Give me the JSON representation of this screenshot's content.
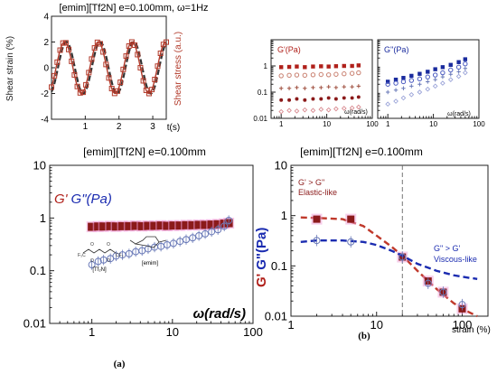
{
  "panel_labels": {
    "a": "(a)",
    "b": "(b)"
  },
  "chart_data": [
    {
      "id": "strain_stress",
      "type": "line",
      "title": "[emim][Tf2N] e=0.100mm, ω=1Hz",
      "xlabel": "t(s)",
      "ylabel_left": "Shear strain (%)",
      "ylabel_right": "Shear stress (a.u.)",
      "xlim": [
        0,
        3.4
      ],
      "ylim": [
        -4,
        4
      ],
      "x_ticks": [
        1,
        2,
        3
      ],
      "y_ticks": [
        -4,
        -2,
        0,
        2,
        4
      ],
      "frequency_hz": 1,
      "series": [
        {
          "role": "strain",
          "color": "#333333",
          "style": "dashed",
          "amplitude": 2,
          "phase": 0
        },
        {
          "role": "stress",
          "color": "#b23a2a",
          "style": "square-markers",
          "amplitude": 2,
          "phase": 0.35
        }
      ]
    },
    {
      "id": "panel_a",
      "type": "scatter",
      "title": "[emim][Tf2N] e=0.100mm",
      "ylabel": {
        "g1": "G'",
        "g2": "G\"(Pa)"
      },
      "xlabel": "ω(rad/s)",
      "xscale": "log",
      "yscale": "log",
      "xlim": [
        0.3,
        100
      ],
      "ylim": [
        0.01,
        10
      ],
      "x_ticks": [
        "1",
        "10",
        "100"
      ],
      "y_ticks": [
        "0.01",
        "0.1",
        "1",
        "10"
      ],
      "grid": false,
      "molecules": {
        "anion": "[Tf₂N]",
        "cation": "[emim]"
      },
      "series": [
        {
          "role": "G'",
          "color": "#8b1a1a",
          "marker": "filled-square",
          "x": [
            1.0,
            1.2,
            1.4,
            1.7,
            2.0,
            2.4,
            2.9,
            3.5,
            4.2,
            5.0,
            6.0,
            7.2,
            8.6,
            10.3,
            12.4,
            14.8,
            17.8,
            21.3,
            25.5,
            30.6,
            36.7,
            44.0,
            50.0
          ],
          "y": [
            0.68,
            0.69,
            0.69,
            0.7,
            0.69,
            0.7,
            0.7,
            0.71,
            0.7,
            0.71,
            0.71,
            0.72,
            0.71,
            0.72,
            0.72,
            0.73,
            0.73,
            0.74,
            0.74,
            0.75,
            0.76,
            0.78,
            0.8
          ]
        },
        {
          "role": "G\"",
          "color": "#6a7ab8",
          "marker": "open-circle",
          "x": [
            1.0,
            1.2,
            1.4,
            1.7,
            2.0,
            2.4,
            2.9,
            3.5,
            4.2,
            5.0,
            6.0,
            7.2,
            8.6,
            10.3,
            12.4,
            14.8,
            17.8,
            21.3,
            25.5,
            30.6,
            36.7,
            44.0,
            50.0
          ],
          "y": [
            0.13,
            0.15,
            0.16,
            0.17,
            0.19,
            0.2,
            0.21,
            0.23,
            0.24,
            0.26,
            0.28,
            0.29,
            0.31,
            0.33,
            0.36,
            0.39,
            0.42,
            0.46,
            0.5,
            0.55,
            0.6,
            0.7,
            0.9
          ]
        }
      ]
    },
    {
      "id": "inset_gp",
      "type": "scatter",
      "label": "G'(Pa)",
      "xlabel": "ω(rad/s)",
      "xscale": "log",
      "yscale": "log",
      "xlim": [
        0.6,
        100
      ],
      "ylim": [
        0.01,
        10
      ],
      "x_ticks": [
        "1",
        "10",
        "100"
      ],
      "y_ticks": [
        "0.01",
        "0.1",
        "1"
      ],
      "series": [
        {
          "color": "#b0201a",
          "marker": "filled-square",
          "x": [
            1,
            1.5,
            2.2,
            3.3,
            5,
            7.5,
            11,
            16,
            24,
            36,
            50
          ],
          "y": [
            0.9,
            0.92,
            0.95,
            0.9,
            0.95,
            0.97,
            0.95,
            0.98,
            1.0,
            1.0,
            1.05
          ]
        },
        {
          "color": "#c98070",
          "marker": "open-circle",
          "x": [
            1,
            1.5,
            2.2,
            3.3,
            5,
            7.5,
            11,
            16,
            24,
            36,
            50
          ],
          "y": [
            0.42,
            0.44,
            0.45,
            0.44,
            0.46,
            0.47,
            0.46,
            0.48,
            0.5,
            0.52,
            0.55
          ]
        },
        {
          "color": "#a05040",
          "marker": "cross",
          "x": [
            1,
            1.5,
            2.2,
            3.3,
            5,
            7.5,
            11,
            16,
            24,
            36,
            50
          ],
          "y": [
            0.14,
            0.14,
            0.15,
            0.14,
            0.15,
            0.15,
            0.16,
            0.15,
            0.16,
            0.16,
            0.17
          ]
        },
        {
          "color": "#8b1a1a",
          "marker": "filled-circle",
          "x": [
            1,
            1.5,
            2.2,
            3.3,
            5,
            7.5,
            11,
            16,
            24,
            36,
            50
          ],
          "y": [
            0.05,
            0.05,
            0.055,
            0.05,
            0.055,
            0.055,
            0.06,
            0.055,
            0.06,
            0.06,
            0.065
          ]
        },
        {
          "color": "#d88a90",
          "marker": "open-diamond",
          "x": [
            1,
            1.5,
            2.2,
            3.3,
            5,
            7.5,
            11,
            16,
            24,
            36,
            50
          ],
          "y": [
            0.018,
            0.02,
            0.019,
            0.021,
            0.02,
            0.022,
            0.021,
            0.023,
            0.024,
            0.025,
            0.027
          ]
        }
      ]
    },
    {
      "id": "inset_gpp",
      "type": "scatter",
      "label": "G''(Pa)",
      "xlabel": "ω(rad/s)",
      "xscale": "log",
      "yscale": "log",
      "xlim": [
        0.6,
        100
      ],
      "ylim": [
        0.01,
        10
      ],
      "x_ticks": [
        "1",
        "10",
        "100"
      ],
      "series": [
        {
          "color": "#1a2b9e",
          "marker": "filled-square",
          "x": [
            1,
            1.5,
            2.2,
            3.3,
            5,
            7.5,
            11,
            16,
            24,
            36,
            50
          ],
          "y": [
            0.25,
            0.3,
            0.35,
            0.42,
            0.5,
            0.6,
            0.75,
            0.9,
            1.1,
            1.4,
            1.8
          ]
        },
        {
          "color": "#4a5ac0",
          "marker": "open-circle",
          "x": [
            1,
            1.5,
            2.2,
            3.3,
            5,
            7.5,
            11,
            16,
            24,
            36,
            50
          ],
          "y": [
            0.2,
            0.22,
            0.25,
            0.28,
            0.32,
            0.38,
            0.45,
            0.55,
            0.7,
            0.9,
            1.2
          ]
        },
        {
          "color": "#6a7ab8",
          "marker": "cross",
          "x": [
            1,
            1.5,
            2.2,
            3.3,
            5,
            7.5,
            11,
            16,
            24,
            36,
            50
          ],
          "y": [
            0.1,
            0.12,
            0.14,
            0.17,
            0.2,
            0.25,
            0.3,
            0.38,
            0.48,
            0.6,
            0.8
          ]
        },
        {
          "color": "#9aa3d8",
          "marker": "open-diamond",
          "x": [
            1,
            1.5,
            2.2,
            3.3,
            5,
            7.5,
            11,
            16,
            24,
            36,
            50
          ],
          "y": [
            0.035,
            0.045,
            0.06,
            0.08,
            0.1,
            0.13,
            0.17,
            0.22,
            0.3,
            0.4,
            0.55
          ]
        }
      ]
    },
    {
      "id": "panel_b",
      "type": "scatter",
      "title": "[emim][Tf2N] e=0.100mm",
      "ylabel": {
        "g1": "G'",
        "g2": "G\"(Pa)"
      },
      "xlabel": "strain (%)",
      "xscale": "log",
      "yscale": "log",
      "xlim": [
        1,
        200
      ],
      "ylim": [
        0.01,
        10
      ],
      "x_ticks": [
        "1",
        "10",
        "100"
      ],
      "y_ticks": [
        "0.01",
        "0.1",
        "1",
        "10"
      ],
      "critical_strain": 20,
      "annotations": {
        "elastic_line1": "G' > G\"",
        "elastic_line2": "Elastic-like",
        "viscous_line1": "G\" > G'",
        "viscous_line2": "Viscous-like"
      },
      "series": [
        {
          "role": "G'",
          "color": "#8b1a1a",
          "marker": "filled-square",
          "fit_color": "#c0392b",
          "x": [
            2,
            5,
            20,
            40,
            60,
            100
          ],
          "y": [
            0.85,
            0.85,
            0.15,
            0.05,
            0.03,
            0.014
          ],
          "fit_x": [
            1.3,
            2,
            4,
            7,
            10,
            15,
            20,
            30,
            50,
            80,
            120,
            150
          ],
          "fit_y": [
            0.92,
            0.9,
            0.85,
            0.62,
            0.4,
            0.24,
            0.16,
            0.08,
            0.035,
            0.018,
            0.012,
            0.01
          ]
        },
        {
          "role": "G\"",
          "color": "#6a7ab8",
          "marker": "open-circle",
          "fit_color": "#1a2bb0",
          "x": [
            2,
            5,
            20,
            40,
            60,
            100
          ],
          "y": [
            0.32,
            0.3,
            0.15,
            0.045,
            0.03,
            0.017
          ],
          "fit_x": [
            1.3,
            2,
            4,
            7,
            10,
            15,
            20,
            30,
            50,
            80,
            120,
            150
          ],
          "fit_y": [
            0.3,
            0.32,
            0.32,
            0.3,
            0.26,
            0.2,
            0.16,
            0.11,
            0.08,
            0.065,
            0.058,
            0.055
          ]
        }
      ]
    }
  ]
}
